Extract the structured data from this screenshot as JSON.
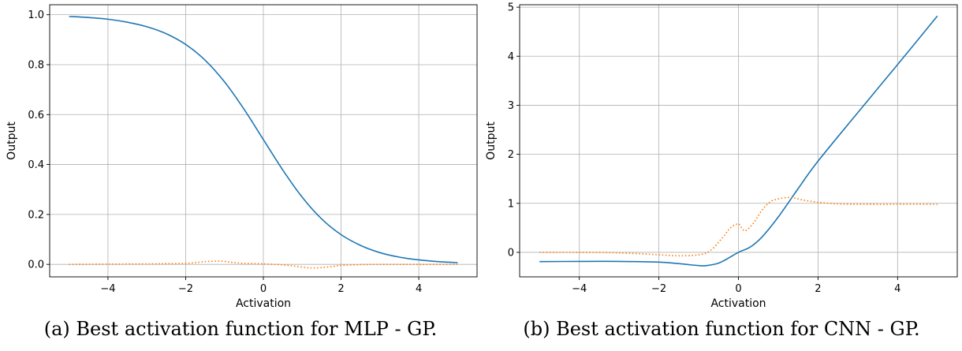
{
  "captions": [
    "(a) Best activation function for MLP - GP.",
    "(b) Best activation function for CNN - GP."
  ],
  "colors": {
    "primary": "#1f77b4",
    "secondary": "#ff7f0e",
    "grid": "#b0b0b0"
  },
  "chart_data": [
    {
      "type": "line",
      "xlabel": "Activation",
      "ylabel": "Output",
      "xlim": [
        -5.5,
        5.5
      ],
      "ylim": [
        -0.05,
        1.04
      ],
      "xticks": [
        -4,
        -2,
        0,
        2,
        4
      ],
      "xtick_labels": [
        "−4",
        "−2",
        "0",
        "2",
        "4"
      ],
      "yticks": [
        0.0,
        0.2,
        0.4,
        0.6,
        0.8,
        1.0
      ],
      "ytick_labels": [
        "0.0",
        "0.2",
        "0.4",
        "0.6",
        "0.8",
        "1.0"
      ],
      "grid": true,
      "series": [
        {
          "style": "solid",
          "color": "#1f77b4",
          "x": [
            -5,
            -4.5,
            -4,
            -3.5,
            -3,
            -2.5,
            -2,
            -1.5,
            -1,
            -0.5,
            0,
            0.5,
            1,
            1.5,
            2,
            2.5,
            3,
            3.5,
            4,
            4.5,
            5
          ],
          "y": [
            0.993,
            0.989,
            0.982,
            0.97,
            0.952,
            0.924,
            0.881,
            0.818,
            0.731,
            0.622,
            0.5,
            0.378,
            0.269,
            0.182,
            0.119,
            0.076,
            0.047,
            0.029,
            0.018,
            0.011,
            0.007
          ]
        },
        {
          "style": "dotted",
          "color": "#ff7f0e",
          "x": [
            -5,
            -4,
            -3,
            -2.5,
            -2,
            -1.7,
            -1.5,
            -1.2,
            -1,
            -0.8,
            -0.5,
            0,
            0.5,
            0.8,
            1,
            1.2,
            1.5,
            1.8,
            2,
            2.5,
            3,
            4,
            5
          ],
          "y": [
            0.0,
            0.001,
            0.002,
            0.003,
            0.004,
            0.008,
            0.011,
            0.013,
            0.012,
            0.008,
            0.004,
            0.002,
            -0.002,
            -0.007,
            -0.011,
            -0.014,
            -0.013,
            -0.008,
            -0.004,
            -0.001,
            0.0,
            0.0,
            0.0
          ]
        }
      ]
    },
    {
      "type": "line",
      "xlabel": "Activation",
      "ylabel": "Output",
      "xlim": [
        -5.5,
        5.5
      ],
      "ylim": [
        -0.5,
        5.05
      ],
      "xticks": [
        -4,
        -2,
        0,
        2,
        4
      ],
      "xtick_labels": [
        "−4",
        "−2",
        "0",
        "2",
        "4"
      ],
      "yticks": [
        0,
        1,
        2,
        3,
        4,
        5
      ],
      "ytick_labels": [
        "0",
        "1",
        "2",
        "3",
        "4",
        "5"
      ],
      "grid": true,
      "series": [
        {
          "style": "solid",
          "color": "#1f77b4",
          "x": [
            -5,
            -4,
            -3,
            -2,
            -1.5,
            -1,
            -0.8,
            -0.5,
            -0.3,
            0,
            0.3,
            0.6,
            1,
            1.5,
            2,
            3,
            4,
            5
          ],
          "y": [
            -0.19,
            -0.185,
            -0.185,
            -0.2,
            -0.23,
            -0.27,
            -0.27,
            -0.22,
            -0.14,
            0.0,
            0.11,
            0.32,
            0.72,
            1.3,
            1.86,
            2.85,
            3.83,
            4.82
          ],
          "smooth": true
        },
        {
          "style": "dotted",
          "color": "#ff7f0e",
          "x": [
            -5,
            -4,
            -3,
            -2,
            -1.5,
            -1,
            -0.7,
            -0.4,
            -0.2,
            0,
            0.1,
            0.2,
            0.4,
            0.6,
            0.8,
            1,
            1.3,
            1.6,
            2,
            2.5,
            3,
            4,
            5
          ],
          "y": [
            0.0,
            0.0,
            -0.01,
            -0.05,
            -0.07,
            -0.05,
            0.04,
            0.3,
            0.5,
            0.58,
            0.47,
            0.45,
            0.62,
            0.87,
            1.03,
            1.09,
            1.12,
            1.07,
            1.02,
            0.99,
            0.98,
            0.98,
            0.98
          ]
        }
      ]
    }
  ]
}
